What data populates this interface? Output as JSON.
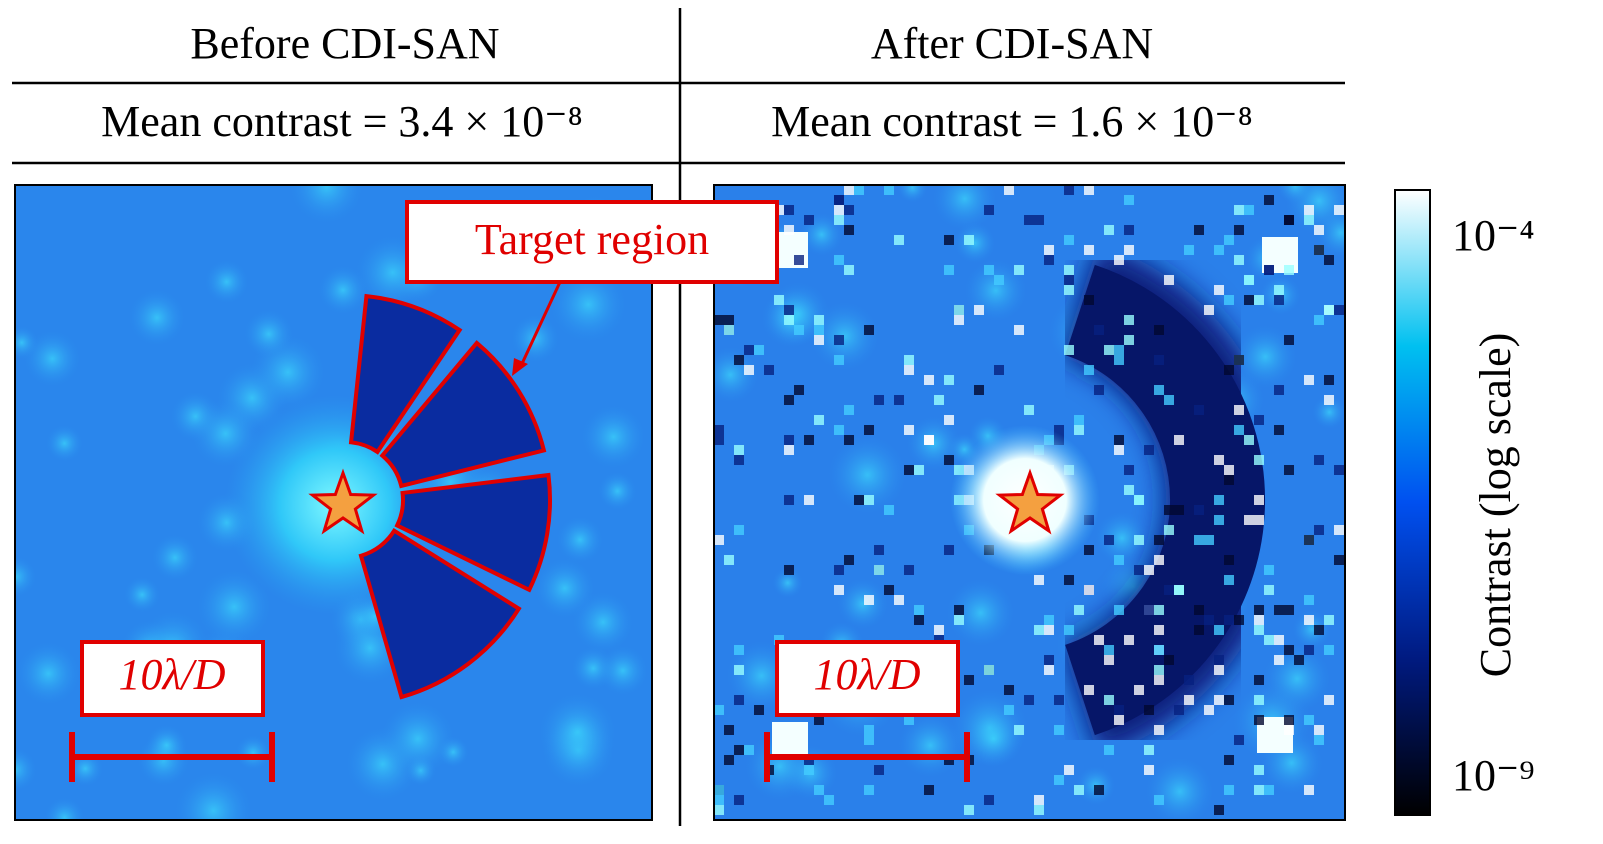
{
  "panels": [
    {
      "title": "Before CDI-SAN",
      "metric": "Mean contrast = 3.4 × 10⁻⁸",
      "scale_bar": "10λ/D",
      "annotation": "Target region"
    },
    {
      "title": "After CDI-SAN",
      "metric": "Mean contrast = 1.6 × 10⁻⁸",
      "scale_bar": "10λ/D"
    }
  ],
  "colorbar": {
    "label": "Contrast (log scale)",
    "max": "10⁻⁴",
    "min": "10⁻⁹"
  }
}
